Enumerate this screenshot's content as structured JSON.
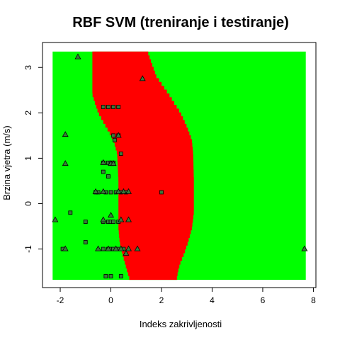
{
  "chart_data": {
    "type": "scatter",
    "title": "RBF SVM (treniranje i testiranje)",
    "xlabel": "Indeks zakrivljenosti",
    "ylabel": "Brzina vjetra (m/s)",
    "xlim": [
      -2.3,
      7.7
    ],
    "ylim": [
      -1.68,
      3.35
    ],
    "frame_xlim": [
      -2.7,
      8.1
    ],
    "frame_ylim": [
      -1.85,
      3.55
    ],
    "x_ticks": [
      -2,
      0,
      2,
      4,
      6,
      8
    ],
    "y_ticks": [
      -1,
      0,
      1,
      2,
      3
    ],
    "grid": false,
    "legend": "none",
    "colors": {
      "background_region": "#00ff00",
      "decision_region": "#ff0000",
      "marker_fill": "#3a7a3a",
      "marker_stroke": "#000000"
    },
    "decision_boundary": [
      {
        "y": 3.35,
        "left": -0.73,
        "right": 1.45
      },
      {
        "y": 2.8,
        "left": -0.73,
        "right": 1.8
      },
      {
        "y": 2.4,
        "left": -0.73,
        "right": 2.3
      },
      {
        "y": 2.0,
        "left": -0.5,
        "right": 2.75
      },
      {
        "y": 1.7,
        "left": -0.2,
        "right": 3.0
      },
      {
        "y": 1.4,
        "left": 0.1,
        "right": 3.2
      },
      {
        "y": 1.1,
        "left": 0.25,
        "right": 3.25
      },
      {
        "y": 0.5,
        "left": 0.3,
        "right": 3.28
      },
      {
        "y": -0.2,
        "left": 0.3,
        "right": 3.28
      },
      {
        "y": -0.55,
        "left": 0.3,
        "right": 3.2
      },
      {
        "y": -0.85,
        "left": 0.35,
        "right": 3.05
      },
      {
        "y": -1.1,
        "left": 0.45,
        "right": 2.9
      },
      {
        "y": -1.3,
        "left": 0.55,
        "right": 2.75
      },
      {
        "y": -1.5,
        "left": 0.65,
        "right": 2.65
      },
      {
        "y": -1.68,
        "left": 0.75,
        "right": 2.6
      }
    ],
    "series": [
      {
        "marker": "square",
        "points": [
          [
            -0.3,
            2.13
          ],
          [
            -0.1,
            2.13
          ],
          [
            0.1,
            2.13
          ],
          [
            0.3,
            2.13
          ],
          [
            0.1,
            1.5
          ],
          [
            0.3,
            1.5
          ],
          [
            0.15,
            1.4
          ],
          [
            0.4,
            1.1
          ],
          [
            -0.3,
            0.9
          ],
          [
            -0.1,
            0.9
          ],
          [
            0.0,
            0.9
          ],
          [
            0.1,
            0.9
          ],
          [
            -0.3,
            0.7
          ],
          [
            -0.1,
            0.6
          ],
          [
            -0.6,
            0.25
          ],
          [
            -0.5,
            0.25
          ],
          [
            -0.2,
            0.25
          ],
          [
            0.0,
            0.25
          ],
          [
            0.2,
            0.25
          ],
          [
            0.4,
            0.25
          ],
          [
            0.6,
            0.25
          ],
          [
            2.0,
            0.25
          ],
          [
            -1.6,
            -0.2
          ],
          [
            -1.0,
            -0.4
          ],
          [
            -0.3,
            -0.4
          ],
          [
            -0.1,
            -0.4
          ],
          [
            0.0,
            -0.4
          ],
          [
            0.1,
            -0.4
          ],
          [
            0.3,
            -0.4
          ],
          [
            -1.0,
            -0.85
          ],
          [
            -1.9,
            -1.0
          ],
          [
            -0.3,
            -1.0
          ],
          [
            -0.1,
            -1.0
          ],
          [
            0.0,
            -1.0
          ],
          [
            0.1,
            -1.0
          ],
          [
            0.3,
            -1.0
          ],
          [
            0.5,
            -1.0
          ],
          [
            -0.2,
            -1.6
          ],
          [
            0.0,
            -1.6
          ],
          [
            0.4,
            -1.6
          ]
        ]
      },
      {
        "marker": "triangle",
        "points": [
          [
            -1.3,
            3.23
          ],
          [
            1.25,
            2.75
          ],
          [
            -1.8,
            1.52
          ],
          [
            0.3,
            1.5
          ],
          [
            -1.8,
            0.88
          ],
          [
            -0.3,
            0.9
          ],
          [
            0.0,
            0.88
          ],
          [
            0.1,
            0.88
          ],
          [
            -0.6,
            0.26
          ],
          [
            -0.3,
            0.26
          ],
          [
            0.3,
            0.26
          ],
          [
            0.5,
            0.26
          ],
          [
            0.7,
            0.26
          ],
          [
            -2.2,
            -0.36
          ],
          [
            0.0,
            -0.26
          ],
          [
            -0.3,
            -0.36
          ],
          [
            0.4,
            -0.36
          ],
          [
            0.7,
            -0.36
          ],
          [
            -1.8,
            -1.0
          ],
          [
            -0.5,
            -1.0
          ],
          [
            -0.1,
            -1.0
          ],
          [
            0.2,
            -1.0
          ],
          [
            0.4,
            -1.0
          ],
          [
            0.7,
            -1.0
          ],
          [
            1.05,
            -1.0
          ],
          [
            0.6,
            -1.1
          ],
          [
            7.65,
            -1.0
          ]
        ]
      }
    ]
  }
}
